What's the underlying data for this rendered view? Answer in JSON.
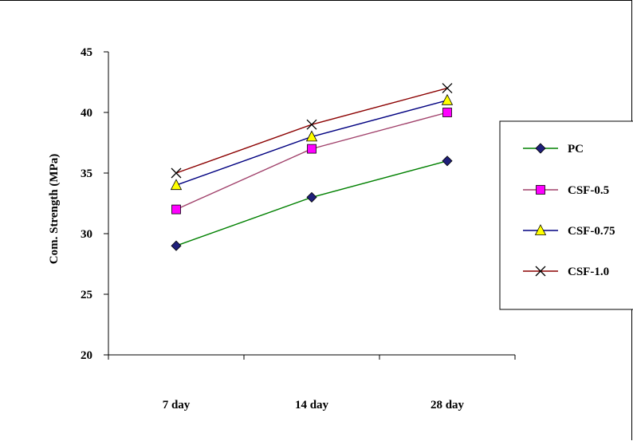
{
  "chart_data": {
    "type": "line",
    "title": "",
    "xlabel": "",
    "ylabel": "Com. Strength (MPa)",
    "categories": [
      "7 day",
      "14 day",
      "28 day"
    ],
    "ylim": [
      20,
      45
    ],
    "yticks": [
      20,
      25,
      30,
      35,
      40,
      45
    ],
    "grid": false,
    "legend_position": "right",
    "series": [
      {
        "name": "PC",
        "values": [
          29,
          33,
          36
        ],
        "color": "#008000",
        "marker": "diamond",
        "marker_color": "#1f1f7a"
      },
      {
        "name": "CSF-0.5",
        "values": [
          32,
          37,
          40
        ],
        "color": "#a0406a",
        "marker": "square",
        "marker_color": "#ff00ff"
      },
      {
        "name": "CSF-0.75",
        "values": [
          34,
          38,
          41
        ],
        "color": "#000080",
        "marker": "triangle",
        "marker_color": "#ffff00"
      },
      {
        "name": "CSF-1.0",
        "values": [
          35,
          39,
          42
        ],
        "color": "#8b0000",
        "marker": "x",
        "marker_color": "#000000"
      }
    ]
  }
}
